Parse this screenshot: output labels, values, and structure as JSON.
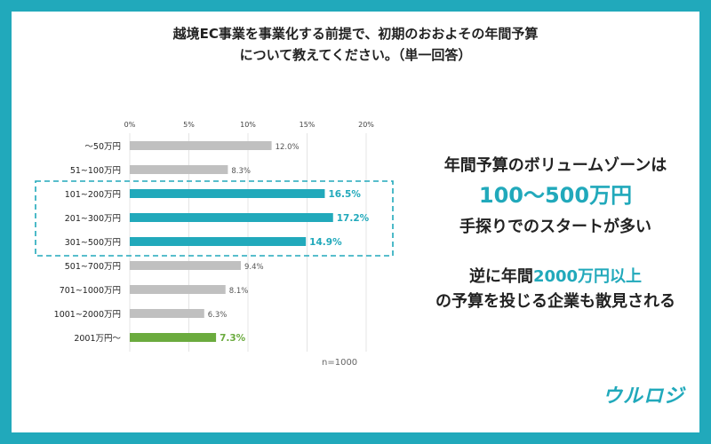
{
  "title": {
    "line1": "越境EC事業を事業化する前提で、初期のおおよその年間予算",
    "line2": "について教えてください。（単一回答）"
  },
  "panel": {
    "line1": "年間予算のボリュームゾーンは",
    "line2": "100〜500万円",
    "line3": "手探りでのスタートが多い",
    "line4_pre": "逆に年間",
    "line4_accent": "2000万円以上",
    "line5": "の予算を投じる企業も散見される"
  },
  "logo": "ウルロジ",
  "colors": {
    "frame": "#21a9bb",
    "accent": "#21a9bb",
    "gray_bar": "#c0c0c0",
    "green_bar": "#6bab3e"
  },
  "chart_data": {
    "type": "bar",
    "orientation": "horizontal",
    "categories": [
      "〜50万円",
      "51~100万円",
      "101~200万円",
      "201~300万円",
      "301~500万円",
      "501~700万円",
      "701~1000万円",
      "1001~2000万円",
      "2001万円〜"
    ],
    "values": [
      12.0,
      8.3,
      16.5,
      17.2,
      14.9,
      9.4,
      8.1,
      6.3,
      7.3
    ],
    "value_labels": [
      "12.0%",
      "8.3%",
      "16.5%",
      "17.2%",
      "14.9%",
      "9.4%",
      "8.1%",
      "6.3%",
      "7.3%"
    ],
    "highlight": [
      "gray",
      "gray",
      "accent",
      "accent",
      "accent",
      "gray",
      "gray",
      "gray",
      "green"
    ],
    "xticks": [
      "0%",
      "5%",
      "10%",
      "15%",
      "20%"
    ],
    "xlim": [
      0,
      20
    ],
    "grid": true,
    "note": "n=1000"
  }
}
